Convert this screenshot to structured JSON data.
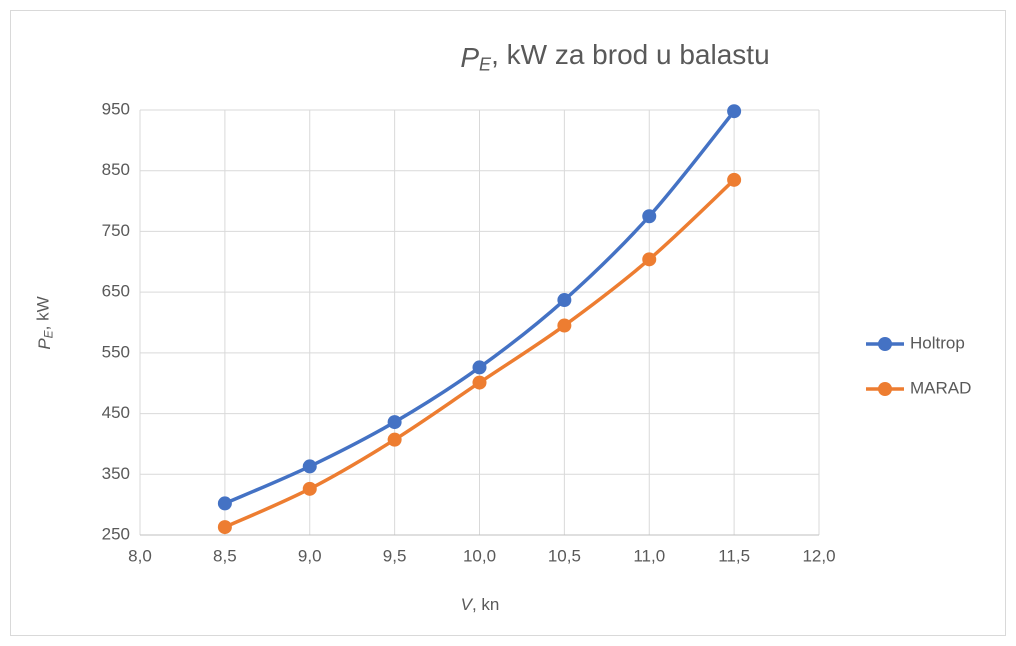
{
  "chart_data": {
    "type": "line",
    "title": "PE, kW za brod u balastu",
    "x_label": "V, kn",
    "y_label": "PE, kW",
    "x": [
      8.5,
      9.0,
      9.5,
      10.0,
      10.5,
      11.0,
      11.5
    ],
    "series": [
      {
        "name": "Holtrop",
        "color": "#4472c4",
        "values": [
          302,
          363,
          436,
          526,
          637,
          775,
          948
        ]
      },
      {
        "name": "MARAD",
        "color": "#ed7d31",
        "values": [
          263,
          326,
          407,
          501,
          595,
          704,
          835
        ]
      }
    ],
    "xlim": [
      8,
      12
    ],
    "xticks": [
      {
        "value": 8,
        "label": "8,0"
      },
      {
        "value": 8.5,
        "label": "8,5"
      },
      {
        "value": 9,
        "label": "9,0"
      },
      {
        "value": 9.5,
        "label": "9,5"
      },
      {
        "value": 10,
        "label": "10,0"
      },
      {
        "value": 10.5,
        "label": "10,5"
      },
      {
        "value": 11,
        "label": "11,0"
      },
      {
        "value": 11.5,
        "label": "11,5"
      },
      {
        "value": 12,
        "label": "12,0"
      }
    ],
    "ylim": [
      250,
      950
    ],
    "yticks": [
      250,
      350,
      450,
      550,
      650,
      750,
      850,
      950
    ],
    "grid": true,
    "smooth": true,
    "legend": "right"
  }
}
